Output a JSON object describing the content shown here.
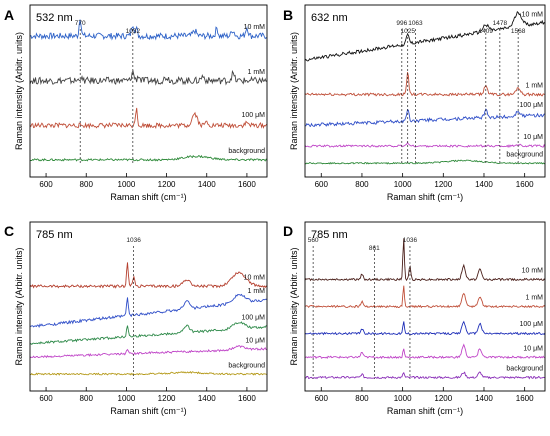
{
  "chart_data": [
    {
      "panel": "A",
      "type": "line",
      "title": "532 nm",
      "xlabel": "Raman shift (cm⁻¹)",
      "ylabel": "Raman intensity (Arbitr. units)",
      "xlim": [
        520,
        1700
      ],
      "xticks": [
        "600",
        "800",
        "1000",
        "1200",
        "1400",
        "1600"
      ],
      "annotations": [
        {
          "x": 770,
          "label": "770"
        },
        {
          "x": 1032,
          "label": "1032"
        }
      ],
      "series": [
        {
          "name": "10 mM",
          "color": "#2f63c8",
          "offset": 0.82,
          "noise": 0.018,
          "peaks": [
            [
              770,
              0.11,
              7
            ],
            [
              1032,
              0.07,
              9
            ],
            [
              1050,
              0.04,
              7
            ],
            [
              1340,
              0.03,
              12
            ],
            [
              1450,
              0.045,
              8
            ],
            [
              1530,
              0.035,
              10
            ],
            [
              1600,
              0.05,
              9
            ]
          ]
        },
        {
          "name": "1 mM",
          "color": "#444444",
          "offset": 0.56,
          "noise": 0.02,
          "peaks": [
            [
              770,
              0.02,
              8
            ],
            [
              1032,
              0.05,
              9
            ],
            [
              1060,
              0.03,
              8
            ],
            [
              1200,
              0.02,
              15
            ],
            [
              1380,
              0.025,
              12
            ],
            [
              1530,
              0.04,
              10
            ]
          ]
        },
        {
          "name": "100 μM",
          "color": "#c0503a",
          "offset": 0.3,
          "noise": 0.014,
          "peaks": [
            [
              1050,
              0.11,
              6
            ],
            [
              1340,
              0.07,
              18
            ],
            [
              1400,
              0.02,
              12
            ],
            [
              1600,
              0.015,
              12
            ]
          ]
        },
        {
          "name": "background",
          "color": "#2f8a3a",
          "offset": 0.1,
          "noise": 0.006,
          "peaks": [
            [
              1350,
              0.02,
              90
            ]
          ]
        }
      ]
    },
    {
      "panel": "B",
      "type": "line",
      "title": "632 nm",
      "xlabel": "Raman shift (cm⁻¹)",
      "ylabel": "Raman intensity (Arbitr. units)",
      "xlim": [
        520,
        1700
      ],
      "xticks": [
        "600",
        "800",
        "1000",
        "1200",
        "1400",
        "1600"
      ],
      "annotations": [
        {
          "x": 996,
          "label": "996"
        },
        {
          "x": 1025,
          "label": "1025"
        },
        {
          "x": 1063,
          "label": "1063"
        },
        {
          "x": 1409,
          "label": "1409"
        },
        {
          "x": 1478,
          "label": "1478"
        },
        {
          "x": 1568,
          "label": "1568"
        }
      ],
      "series": [
        {
          "name": "10 mM",
          "color": "#111111",
          "offset": 0.68,
          "noise": 0.01,
          "rise": 0.22,
          "peaks": [
            [
              1025,
              0.05,
              10
            ],
            [
              1409,
              0.04,
              20
            ],
            [
              1568,
              0.08,
              25
            ]
          ]
        },
        {
          "name": "1 mM",
          "color": "#c0503a",
          "offset": 0.48,
          "noise": 0.008,
          "peaks": [
            [
              1025,
              0.14,
              7
            ],
            [
              1409,
              0.05,
              12
            ],
            [
              1568,
              0.04,
              15
            ]
          ]
        },
        {
          "name": "100 μM",
          "color": "#2f4ec8",
          "offset": 0.3,
          "noise": 0.01,
          "rise": 0.06,
          "peaks": [
            [
              1025,
              0.07,
              8
            ],
            [
              1409,
              0.04,
              12
            ],
            [
              1568,
              0.03,
              15
            ]
          ]
        },
        {
          "name": "10 μM",
          "color": "#c046c8",
          "offset": 0.18,
          "noise": 0.006,
          "peaks": [
            [
              1025,
              0.02,
              8
            ],
            [
              1568,
              0.01,
              15
            ]
          ]
        },
        {
          "name": "background",
          "color": "#2f8a3a",
          "offset": 0.08,
          "noise": 0.004,
          "peaks": [
            [
              1300,
              0.015,
              120
            ]
          ]
        }
      ]
    },
    {
      "panel": "C",
      "type": "line",
      "title": "785 nm",
      "xlabel": "Raman shift (cm⁻¹)",
      "ylabel": "Raman intensity (Arbitr. units)",
      "xlim": [
        520,
        1700
      ],
      "xticks": [
        "600",
        "800",
        "1000",
        "1200",
        "1400",
        "1600"
      ],
      "annotations": [
        {
          "x": 1036,
          "label": "1036"
        }
      ],
      "series": [
        {
          "name": "10 mM",
          "color": "#b5402f",
          "offset": 0.62,
          "noise": 0.008,
          "peaks": [
            [
              1005,
              0.14,
              6
            ],
            [
              1036,
              0.05,
              8
            ],
            [
              1300,
              0.04,
              25
            ],
            [
              1560,
              0.08,
              50
            ]
          ]
        },
        {
          "name": "1 mM",
          "color": "#2f4ec8",
          "offset": 0.38,
          "noise": 0.008,
          "rise": 0.16,
          "peaks": [
            [
              1005,
              0.11,
              6
            ],
            [
              1300,
              0.05,
              20
            ],
            [
              1560,
              0.05,
              40
            ]
          ]
        },
        {
          "name": "100 μM",
          "color": "#2f8a4a",
          "offset": 0.28,
          "noise": 0.007,
          "rise": 0.1,
          "peaks": [
            [
              1005,
              0.07,
              6
            ],
            [
              1300,
              0.04,
              20
            ],
            [
              1560,
              0.04,
              40
            ]
          ]
        },
        {
          "name": "10 μM",
          "color": "#c046c8",
          "offset": 0.2,
          "noise": 0.006,
          "rise": 0.05,
          "peaks": [
            [
              1005,
              0.03,
              6
            ],
            [
              1560,
              0.02,
              40
            ]
          ]
        },
        {
          "name": "background",
          "color": "#b59a1a",
          "offset": 0.1,
          "noise": 0.005,
          "peaks": [
            [
              1300,
              0.01,
              120
            ]
          ]
        }
      ]
    },
    {
      "panel": "D",
      "type": "line",
      "title": "785 nm",
      "xlabel": "Raman shift (cm⁻¹)",
      "ylabel": "Raman intensity (Arbitr. units)",
      "xlim": [
        520,
        1700
      ],
      "xticks": [
        "600",
        "800",
        "1000",
        "1200",
        "1400",
        "1600"
      ],
      "annotations": [
        {
          "x": 560,
          "label": "560"
        },
        {
          "x": 861,
          "label": "861"
        },
        {
          "x": 1036,
          "label": "1036"
        }
      ],
      "series": [
        {
          "name": "10 mM",
          "color": "#4a1f1a",
          "offset": 0.66,
          "noise": 0.006,
          "peaks": [
            [
              1005,
              0.25,
              5
            ],
            [
              1036,
              0.08,
              6
            ],
            [
              1300,
              0.08,
              12
            ],
            [
              1380,
              0.06,
              12
            ],
            [
              800,
              0.03,
              8
            ]
          ]
        },
        {
          "name": "1 mM",
          "color": "#c0503a",
          "offset": 0.5,
          "noise": 0.006,
          "peaks": [
            [
              1005,
              0.12,
              5
            ],
            [
              1300,
              0.08,
              12
            ],
            [
              1380,
              0.06,
              12
            ],
            [
              800,
              0.03,
              8
            ]
          ]
        },
        {
          "name": "100 μM",
          "color": "#1f2fb8",
          "offset": 0.34,
          "noise": 0.006,
          "peaks": [
            [
              1005,
              0.07,
              5
            ],
            [
              1300,
              0.07,
              12
            ],
            [
              1380,
              0.06,
              12
            ],
            [
              800,
              0.03,
              8
            ]
          ]
        },
        {
          "name": "10 μM",
          "color": "#c046c8",
          "offset": 0.2,
          "noise": 0.006,
          "peaks": [
            [
              1005,
              0.05,
              5
            ],
            [
              1300,
              0.07,
              12
            ],
            [
              1380,
              0.05,
              12
            ],
            [
              800,
              0.03,
              8
            ]
          ]
        },
        {
          "name": "background",
          "color": "#8a2fb8",
          "offset": 0.08,
          "noise": 0.006,
          "peaks": [
            [
              1005,
              0.03,
              5
            ],
            [
              1300,
              0.03,
              12
            ],
            [
              1380,
              0.03,
              12
            ],
            [
              800,
              0.02,
              8
            ]
          ]
        }
      ]
    }
  ]
}
